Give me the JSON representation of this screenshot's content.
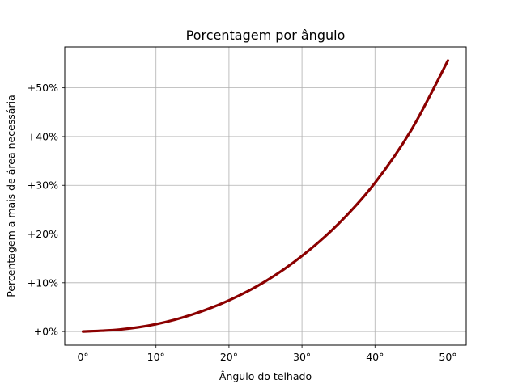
{
  "chart_data": {
    "type": "line",
    "title": "Porcentagem por ângulo",
    "xlabel": "Ângulo do telhado",
    "ylabel": "Percentagem a mais de área necessária",
    "xlim": [
      -2.5,
      52.5
    ],
    "ylim": [
      -2.8,
      58.4
    ],
    "xticks": [
      0,
      10,
      20,
      30,
      40,
      50
    ],
    "xtick_labels": [
      "0°",
      "10°",
      "20°",
      "30°",
      "40°",
      "50°"
    ],
    "yticks": [
      0,
      10,
      20,
      30,
      40,
      50
    ],
    "ytick_labels": [
      "+0%",
      "+10%",
      "+20%",
      "+30%",
      "+40%",
      "+50%"
    ],
    "grid": true,
    "series": [
      {
        "color": "#8b0000",
        "x": [
          0,
          5,
          10,
          15,
          20,
          25,
          30,
          35,
          40,
          45,
          50
        ],
        "y": [
          0,
          0.4,
          1.5,
          3.5,
          6.4,
          10.3,
          15.5,
          22.1,
          30.5,
          41.4,
          55.6
        ]
      }
    ]
  }
}
